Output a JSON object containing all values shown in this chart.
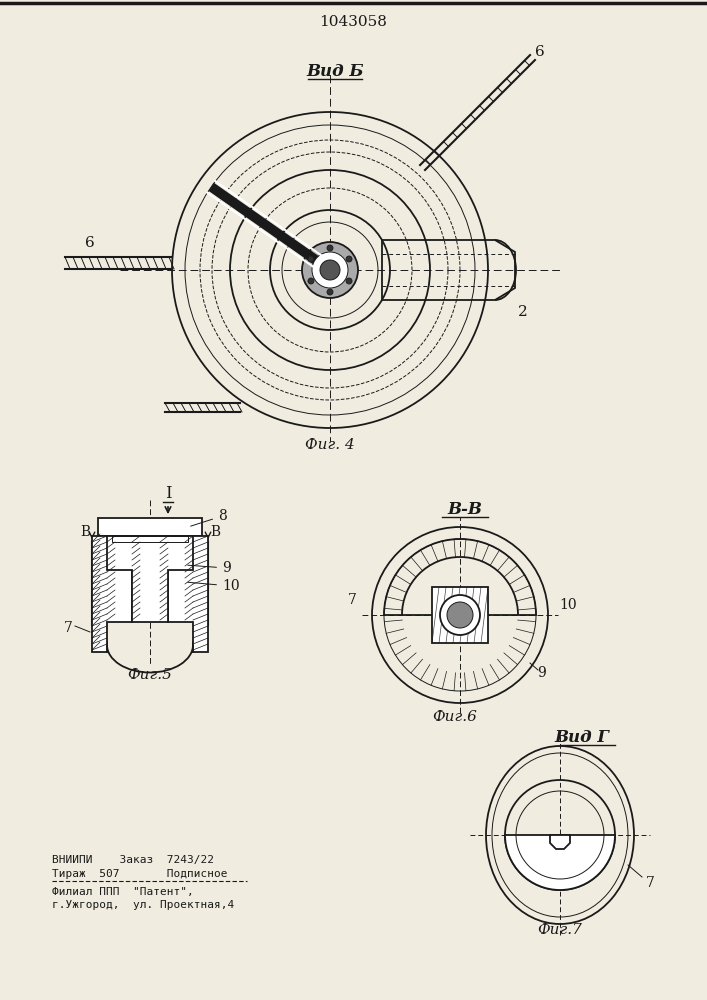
{
  "title": "1043058",
  "bg_color": "#f0ece0",
  "line_color": "#1a1a1a",
  "fig4_label": "Фиг. 4",
  "fig5_label": "Фиг.5",
  "fig6_label": "Фиг.6",
  "fig7_label": "Фиг.7",
  "vid_b_label": "Вид Б",
  "vid_g_label": "ВидГ",
  "bb_label": "В-В",
  "section_I_label": "I"
}
